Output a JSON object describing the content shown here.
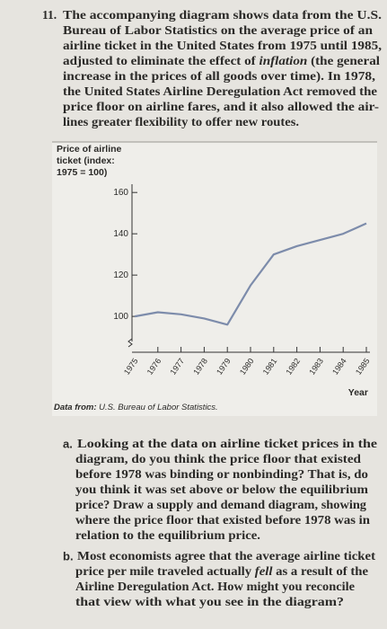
{
  "question": {
    "number": "11.",
    "lines": [
      [
        {
          "text": "The accompanying diagram shows data from the U.S."
        }
      ],
      [
        {
          "text": "Bureau of Labor Statistics on the average price of an"
        }
      ],
      [
        {
          "text": "airline ticket in the United States from 1975 until 1985,"
        }
      ],
      [
        {
          "text": "adjusted to eliminate the effect of "
        },
        {
          "text": "inflation",
          "italic": true
        },
        {
          "text": " (the general"
        }
      ],
      [
        {
          "text": "increase in the prices of all goods over time). In 1978,"
        }
      ],
      [
        {
          "text": "the United States Airline Deregulation Act removed the"
        }
      ],
      [
        {
          "text": "price floor on airline fares, and it also allowed the air-"
        }
      ],
      [
        {
          "text": "lines greater flexibility to offer new routes."
        }
      ]
    ]
  },
  "chart_data": {
    "type": "line",
    "ylabel": [
      "Price of airline",
      "ticket (index:",
      "1975 = 100)"
    ],
    "xlabel": "Year",
    "categories": [
      "1975",
      "1976",
      "1977",
      "1978",
      "1979",
      "1980",
      "1981",
      "1982",
      "1983",
      "1984",
      "1985"
    ],
    "values": [
      100,
      102,
      101,
      99,
      96,
      115,
      130,
      134,
      137,
      140,
      145
    ],
    "color": "#7d8cab",
    "ylim": [
      87,
      164
    ],
    "yticks": [
      100,
      120,
      140,
      160
    ],
    "source": {
      "label": "Data from:",
      "text": " U.S. Bureau of Labor Statistics."
    }
  },
  "parts": [
    {
      "label": "a.",
      "lines": [
        [
          {
            "text": "Looking at the data on airline ticket prices in the"
          }
        ],
        [
          {
            "text": "diagram, do you think the price floor that existed"
          }
        ],
        [
          {
            "text": "before 1978 was binding or nonbinding? That is, do"
          }
        ],
        [
          {
            "text": "you think it was set above or below the equilibrium"
          }
        ],
        [
          {
            "text": "price? Draw a supply and demand diagram, showing"
          }
        ],
        [
          {
            "text": "where the price floor that existed before 1978 was in"
          }
        ],
        [
          {
            "text": "relation to the equilibrium price."
          }
        ]
      ]
    },
    {
      "label": "b.",
      "lines": [
        [
          {
            "text": "Most economists agree that the average airline ticket"
          }
        ],
        [
          {
            "text": "price per mile traveled actually "
          },
          {
            "text": "fell",
            "italic": true
          },
          {
            "text": " as a result of the"
          }
        ],
        [
          {
            "text": "Airline Deregulation Act. How might you reconcile"
          }
        ],
        [
          {
            "text": "that view with what you see in the diagram?"
          }
        ]
      ]
    }
  ]
}
